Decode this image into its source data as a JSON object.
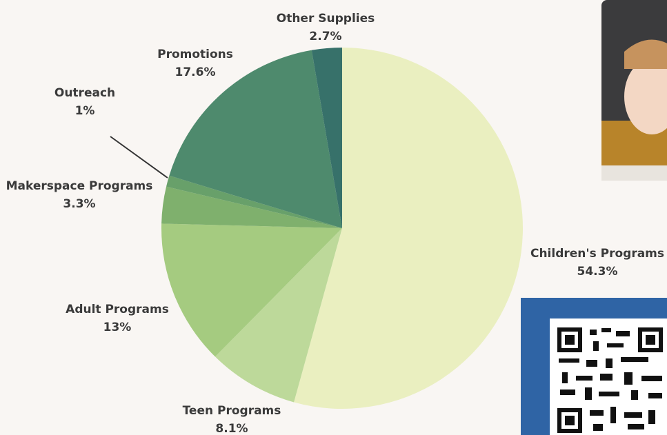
{
  "chart_data": {
    "type": "pie",
    "categories": [
      "Children's Programs",
      "Teen Programs",
      "Adult Programs",
      "Makerspace Programs",
      "Outreach",
      "Promotions",
      "Other Supplies"
    ],
    "values": [
      54.3,
      8.1,
      13,
      3.3,
      1,
      17.6,
      2.7
    ],
    "value_labels": [
      "54.3%",
      "8.1%",
      "13%",
      "3.3%",
      "1%",
      "17.6%",
      "2.7%"
    ],
    "colors": [
      "#eaefc0",
      "#bdd99a",
      "#a5cb80",
      "#7fb06d",
      "#68a06a",
      "#4e8a6d",
      "#37716a"
    ]
  }
}
